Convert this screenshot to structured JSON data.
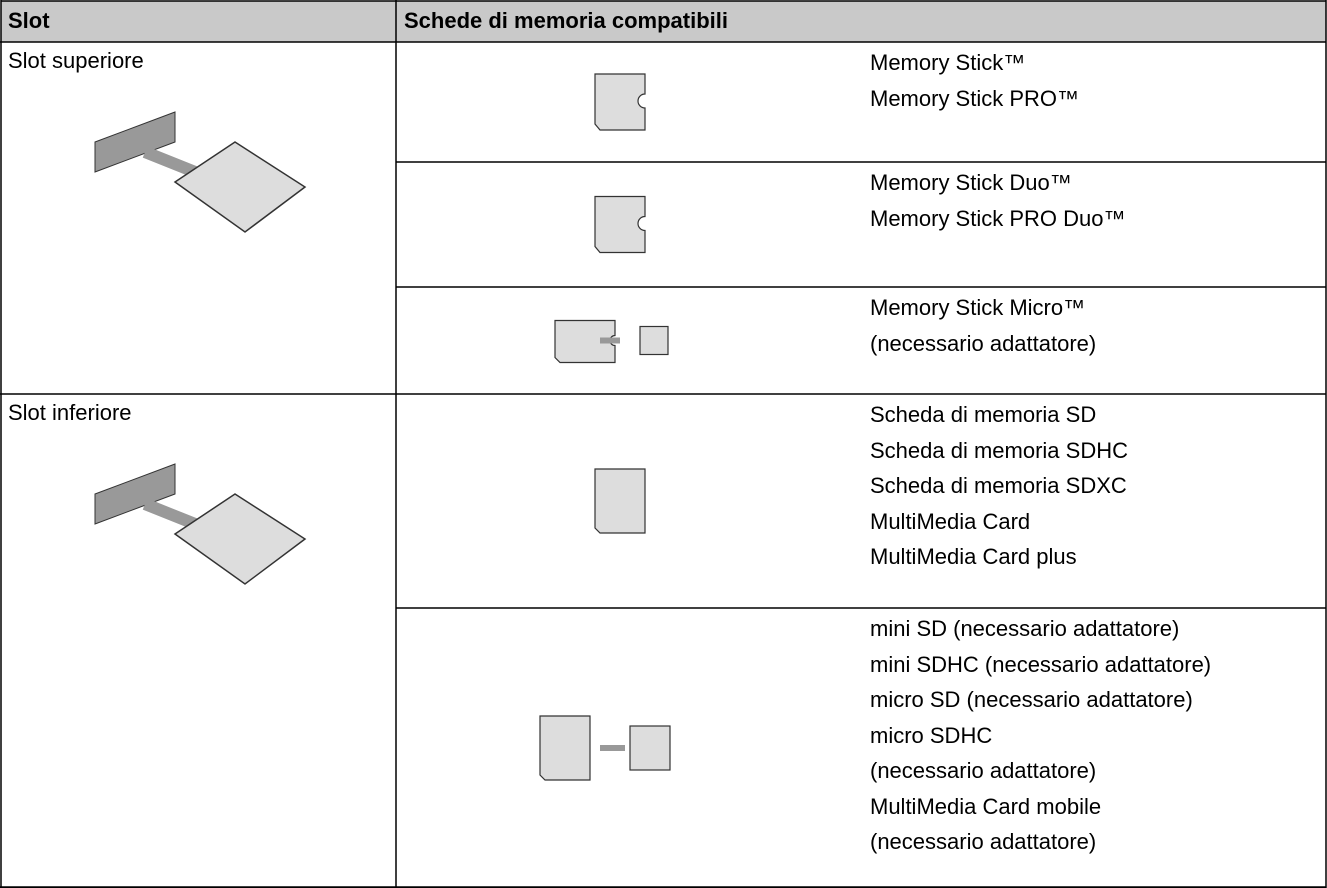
{
  "table": {
    "header": [
      "Slot",
      "Schede di memoria compatibili"
    ],
    "slots": [
      {
        "name": "Slot superiore",
        "cards": [
          {
            "lines": [
              "Memory Stick™",
              "Memory Stick PRO™"
            ]
          },
          {
            "lines": [
              "Memory Stick Duo™",
              "Memory Stick PRO Duo™"
            ]
          },
          {
            "lines": [
              "Memory Stick Micro™",
              "(necessario adattatore)"
            ]
          }
        ]
      },
      {
        "name": "Slot inferiore",
        "cards": [
          {
            "lines": [
              "Scheda di memoria SD",
              "Scheda di memoria SDHC",
              "Scheda di memoria SDXC",
              "MultiMedia Card",
              "MultiMedia Card plus"
            ]
          },
          {
            "lines": [
              "mini SD (necessario adattatore)",
              "mini SDHC (necessario adattatore)",
              "micro SD (necessario adattatore)",
              "micro SDHC",
              "(necessario adattatore)",
              "MultiMedia Card mobile",
              "(necessario adattatore)"
            ]
          }
        ]
      }
    ]
  }
}
